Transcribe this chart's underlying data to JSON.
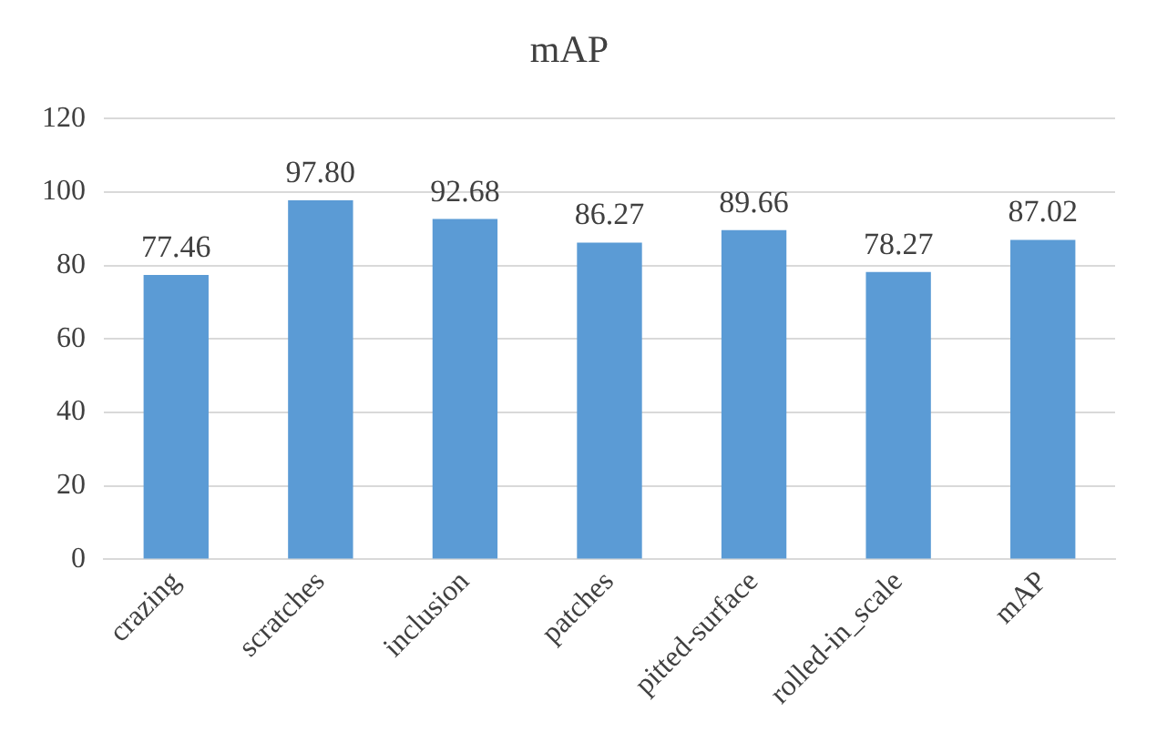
{
  "chart_data": {
    "type": "bar",
    "title": "mAP",
    "categories": [
      "crazing",
      "scratches",
      "inclusion",
      "patches",
      "pitted-surface",
      "rolled-in_scale",
      "mAP"
    ],
    "values": [
      77.46,
      97.8,
      92.68,
      86.27,
      89.66,
      78.27,
      87.02
    ],
    "value_labels": [
      "77.46",
      "97.80",
      "92.68",
      "86.27",
      "89.66",
      "78.27",
      "87.02"
    ],
    "color": "#5b9bd5",
    "ylim": [
      0,
      120
    ],
    "yticks": [
      0,
      20,
      40,
      60,
      80,
      100,
      120
    ],
    "grid": "y",
    "legend": false
  }
}
